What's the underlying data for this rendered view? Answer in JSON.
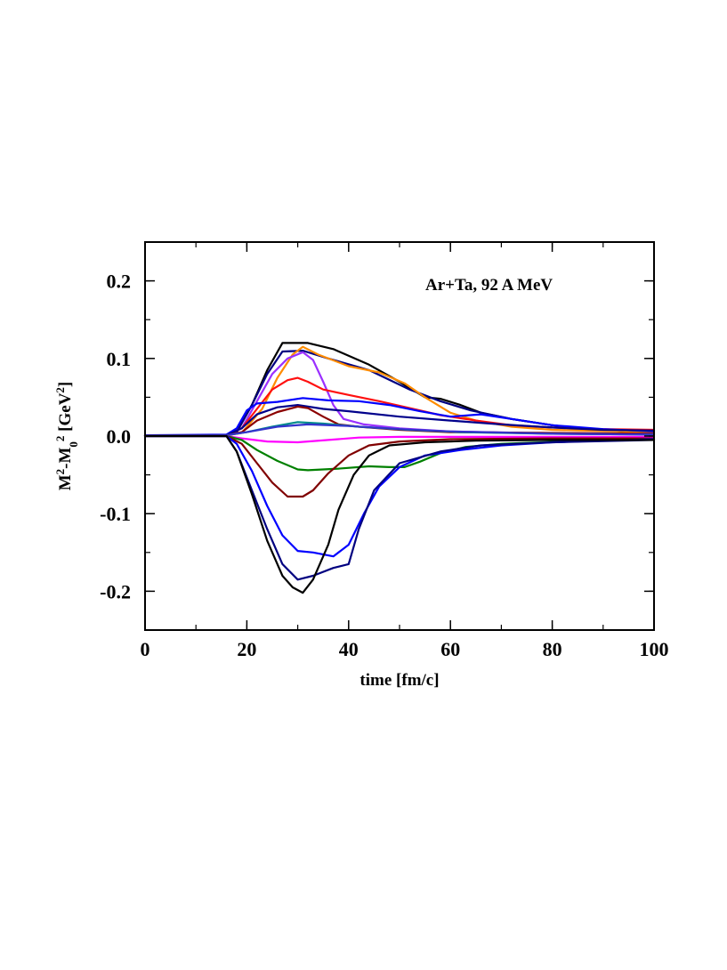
{
  "chart_data": {
    "type": "line",
    "title": "",
    "annotation": "Ar+Ta,  92 A MeV",
    "xlabel": "time [fm/c]",
    "ylabel": {
      "parts": [
        {
          "text": "M",
          "shift": "normal"
        },
        {
          "text": "2",
          "shift": "super"
        },
        {
          "text": "-M",
          "shift": "normal"
        },
        {
          "text": "0",
          "shift": "sub"
        },
        {
          "text": "2",
          "shift": "super"
        },
        {
          "text": " [GeV",
          "shift": "normal"
        },
        {
          "text": "2",
          "shift": "super"
        },
        {
          "text": "]",
          "shift": "normal"
        }
      ]
    },
    "xlim": [
      0,
      100
    ],
    "ylim": [
      -0.25,
      0.25
    ],
    "x_ticks": [
      0,
      20,
      40,
      60,
      80,
      100
    ],
    "x_tick_labels": [
      "0",
      "20",
      "40",
      "60",
      "80",
      "100"
    ],
    "x_minor_step": 10,
    "y_ticks": [
      0.2,
      0.1,
      0.0,
      -0.1,
      -0.2
    ],
    "y_tick_labels": [
      "0.2",
      "0.1",
      "0.0",
      "-0.1",
      "-0.2"
    ],
    "y_minor_step": 0.05,
    "grid": false,
    "legend": "none",
    "series": [
      {
        "name": "s1-black-top",
        "color": "#000000",
        "points": [
          [
            0,
            0.001
          ],
          [
            16,
            0.001
          ],
          [
            18,
            0.005
          ],
          [
            21,
            0.04
          ],
          [
            24,
            0.085
          ],
          [
            27,
            0.12
          ],
          [
            32,
            0.12
          ],
          [
            37,
            0.112
          ],
          [
            44,
            0.092
          ],
          [
            50,
            0.07
          ],
          [
            55,
            0.05
          ],
          [
            58,
            0.048
          ],
          [
            62,
            0.04
          ],
          [
            66,
            0.03
          ],
          [
            72,
            0.022
          ],
          [
            80,
            0.014
          ],
          [
            88,
            0.008
          ],
          [
            100,
            0.004
          ]
        ]
      },
      {
        "name": "s2-navy-top",
        "color": "#000080",
        "points": [
          [
            0,
            0.001
          ],
          [
            16,
            0.001
          ],
          [
            18,
            0.005
          ],
          [
            21,
            0.04
          ],
          [
            24,
            0.08
          ],
          [
            27,
            0.109
          ],
          [
            31,
            0.11
          ],
          [
            36,
            0.1
          ],
          [
            44,
            0.085
          ],
          [
            52,
            0.06
          ],
          [
            58,
            0.045
          ],
          [
            64,
            0.033
          ],
          [
            72,
            0.022
          ],
          [
            80,
            0.014
          ],
          [
            88,
            0.008
          ],
          [
            100,
            0.004
          ]
        ]
      },
      {
        "name": "s3-orange",
        "color": "#ff8c00",
        "points": [
          [
            0,
            0.001
          ],
          [
            16,
            0.001
          ],
          [
            19,
            0.004
          ],
          [
            23,
            0.035
          ],
          [
            26,
            0.075
          ],
          [
            29,
            0.105
          ],
          [
            31,
            0.115
          ],
          [
            34,
            0.105
          ],
          [
            40,
            0.09
          ],
          [
            46,
            0.082
          ],
          [
            51,
            0.068
          ],
          [
            55,
            0.05
          ],
          [
            60,
            0.03
          ],
          [
            65,
            0.02
          ],
          [
            72,
            0.012
          ],
          [
            80,
            0.008
          ],
          [
            100,
            0.005
          ]
        ]
      },
      {
        "name": "s4-purple",
        "color": "#9b30ff",
        "points": [
          [
            0,
            0.001
          ],
          [
            16,
            0.001
          ],
          [
            19,
            0.01
          ],
          [
            22,
            0.045
          ],
          [
            25,
            0.08
          ],
          [
            28,
            0.1
          ],
          [
            31,
            0.108
          ],
          [
            33,
            0.098
          ],
          [
            35,
            0.07
          ],
          [
            37,
            0.04
          ],
          [
            39,
            0.022
          ],
          [
            43,
            0.015
          ],
          [
            50,
            0.01
          ],
          [
            60,
            0.006
          ],
          [
            75,
            0.004
          ],
          [
            100,
            0.003
          ]
        ]
      },
      {
        "name": "s5-red",
        "color": "#ff1010",
        "points": [
          [
            0,
            0.001
          ],
          [
            16,
            0.001
          ],
          [
            19,
            0.01
          ],
          [
            22,
            0.035
          ],
          [
            25,
            0.06
          ],
          [
            28,
            0.072
          ],
          [
            30,
            0.075
          ],
          [
            32,
            0.07
          ],
          [
            35,
            0.06
          ],
          [
            40,
            0.053
          ],
          [
            46,
            0.045
          ],
          [
            52,
            0.036
          ],
          [
            58,
            0.027
          ],
          [
            65,
            0.02
          ],
          [
            72,
            0.014
          ],
          [
            80,
            0.011
          ],
          [
            90,
            0.009
          ],
          [
            100,
            0.008
          ]
        ]
      },
      {
        "name": "s6-blue-top",
        "color": "#0000ff",
        "points": [
          [
            0,
            0.001
          ],
          [
            16,
            0.002
          ],
          [
            18,
            0.01
          ],
          [
            20,
            0.033
          ],
          [
            22,
            0.042
          ],
          [
            26,
            0.044
          ],
          [
            31,
            0.049
          ],
          [
            36,
            0.046
          ],
          [
            42,
            0.045
          ],
          [
            48,
            0.04
          ],
          [
            54,
            0.032
          ],
          [
            60,
            0.025
          ],
          [
            66,
            0.028
          ],
          [
            72,
            0.022
          ],
          [
            80,
            0.014
          ],
          [
            90,
            0.009
          ],
          [
            100,
            0.006
          ]
        ]
      },
      {
        "name": "s7-navy-mid",
        "color": "#00008b",
        "points": [
          [
            0,
            0.001
          ],
          [
            16,
            0.001
          ],
          [
            19,
            0.01
          ],
          [
            22,
            0.028
          ],
          [
            26,
            0.037
          ],
          [
            30,
            0.04
          ],
          [
            35,
            0.035
          ],
          [
            40,
            0.032
          ],
          [
            50,
            0.025
          ],
          [
            60,
            0.02
          ],
          [
            70,
            0.015
          ],
          [
            80,
            0.011
          ],
          [
            90,
            0.008
          ],
          [
            100,
            0.007
          ]
        ]
      },
      {
        "name": "s8-maroon-top",
        "color": "#8b0000",
        "points": [
          [
            0,
            0.001
          ],
          [
            16,
            0.001
          ],
          [
            19,
            0.005
          ],
          [
            22,
            0.02
          ],
          [
            26,
            0.031
          ],
          [
            30,
            0.038
          ],
          [
            32,
            0.036
          ],
          [
            35,
            0.025
          ],
          [
            38,
            0.015
          ],
          [
            42,
            0.012
          ],
          [
            50,
            0.008
          ],
          [
            60,
            0.005
          ],
          [
            80,
            0.004
          ],
          [
            100,
            0.003
          ]
        ]
      },
      {
        "name": "s9-teal",
        "color": "#008b8b",
        "points": [
          [
            0,
            0.001
          ],
          [
            16,
            0.001
          ],
          [
            20,
            0.005
          ],
          [
            25,
            0.012
          ],
          [
            30,
            0.018
          ],
          [
            35,
            0.016
          ],
          [
            42,
            0.012
          ],
          [
            52,
            0.008
          ],
          [
            62,
            0.005
          ],
          [
            80,
            0.003
          ],
          [
            100,
            0.002
          ]
        ]
      },
      {
        "name": "s10-blue-flat",
        "color": "#3333cc",
        "points": [
          [
            0,
            0.001
          ],
          [
            16,
            0.001
          ],
          [
            20,
            0.005
          ],
          [
            26,
            0.012
          ],
          [
            32,
            0.015
          ],
          [
            40,
            0.013
          ],
          [
            50,
            0.009
          ],
          [
            60,
            0.006
          ],
          [
            80,
            0.003
          ],
          [
            100,
            0.002
          ]
        ]
      },
      {
        "name": "s11-magenta",
        "color": "#ff00ff",
        "points": [
          [
            0,
            0.0
          ],
          [
            16,
            0.0
          ],
          [
            19,
            -0.003
          ],
          [
            24,
            -0.007
          ],
          [
            30,
            -0.008
          ],
          [
            36,
            -0.005
          ],
          [
            42,
            -0.002
          ],
          [
            50,
            -0.001
          ],
          [
            100,
            -0.001
          ]
        ]
      },
      {
        "name": "s12-green",
        "color": "#008000",
        "points": [
          [
            0,
            0.0
          ],
          [
            16,
            0.0
          ],
          [
            19,
            -0.005
          ],
          [
            22,
            -0.018
          ],
          [
            26,
            -0.032
          ],
          [
            30,
            -0.043
          ],
          [
            32,
            -0.044
          ],
          [
            38,
            -0.042
          ],
          [
            44,
            -0.039
          ],
          [
            48,
            -0.04
          ],
          [
            51,
            -0.04
          ],
          [
            54,
            -0.033
          ],
          [
            58,
            -0.022
          ],
          [
            63,
            -0.014
          ],
          [
            70,
            -0.01
          ],
          [
            78,
            -0.008
          ],
          [
            85,
            -0.006
          ],
          [
            100,
            -0.004
          ]
        ]
      },
      {
        "name": "s13-maroon-bottom",
        "color": "#800000",
        "points": [
          [
            0,
            0.0
          ],
          [
            16,
            0.0
          ],
          [
            19,
            -0.01
          ],
          [
            22,
            -0.035
          ],
          [
            25,
            -0.06
          ],
          [
            28,
            -0.078
          ],
          [
            31,
            -0.078
          ],
          [
            33,
            -0.07
          ],
          [
            36,
            -0.048
          ],
          [
            40,
            -0.025
          ],
          [
            44,
            -0.012
          ],
          [
            50,
            -0.007
          ],
          [
            60,
            -0.004
          ],
          [
            80,
            -0.003
          ],
          [
            100,
            -0.003
          ]
        ]
      },
      {
        "name": "s14-blue-bottom",
        "color": "#0000ff",
        "points": [
          [
            0,
            0.0
          ],
          [
            16,
            0.0
          ],
          [
            18,
            -0.01
          ],
          [
            21,
            -0.045
          ],
          [
            24,
            -0.09
          ],
          [
            27,
            -0.128
          ],
          [
            30,
            -0.148
          ],
          [
            33,
            -0.15
          ],
          [
            37,
            -0.155
          ],
          [
            40,
            -0.14
          ],
          [
            43,
            -0.1
          ],
          [
            46,
            -0.065
          ],
          [
            50,
            -0.04
          ],
          [
            55,
            -0.025
          ],
          [
            62,
            -0.018
          ],
          [
            70,
            -0.012
          ],
          [
            80,
            -0.008
          ],
          [
            90,
            -0.006
          ],
          [
            100,
            -0.004
          ]
        ]
      },
      {
        "name": "s15-navy-bottom",
        "color": "#000080",
        "points": [
          [
            0,
            0.0
          ],
          [
            16,
            0.0
          ],
          [
            18,
            -0.02
          ],
          [
            21,
            -0.07
          ],
          [
            24,
            -0.12
          ],
          [
            27,
            -0.165
          ],
          [
            30,
            -0.185
          ],
          [
            33,
            -0.18
          ],
          [
            37,
            -0.17
          ],
          [
            40,
            -0.165
          ],
          [
            42,
            -0.12
          ],
          [
            45,
            -0.07
          ],
          [
            50,
            -0.035
          ],
          [
            58,
            -0.02
          ],
          [
            66,
            -0.012
          ],
          [
            80,
            -0.008
          ],
          [
            100,
            -0.005
          ]
        ]
      },
      {
        "name": "s16-black-bottom",
        "color": "#000000",
        "points": [
          [
            0,
            0.0
          ],
          [
            16,
            0.0
          ],
          [
            18,
            -0.02
          ],
          [
            21,
            -0.075
          ],
          [
            24,
            -0.135
          ],
          [
            27,
            -0.18
          ],
          [
            29,
            -0.195
          ],
          [
            31,
            -0.202
          ],
          [
            33,
            -0.185
          ],
          [
            36,
            -0.14
          ],
          [
            38,
            -0.095
          ],
          [
            41,
            -0.05
          ],
          [
            44,
            -0.025
          ],
          [
            48,
            -0.012
          ],
          [
            55,
            -0.008
          ],
          [
            65,
            -0.006
          ],
          [
            80,
            -0.005
          ],
          [
            100,
            -0.005
          ]
        ]
      }
    ]
  }
}
